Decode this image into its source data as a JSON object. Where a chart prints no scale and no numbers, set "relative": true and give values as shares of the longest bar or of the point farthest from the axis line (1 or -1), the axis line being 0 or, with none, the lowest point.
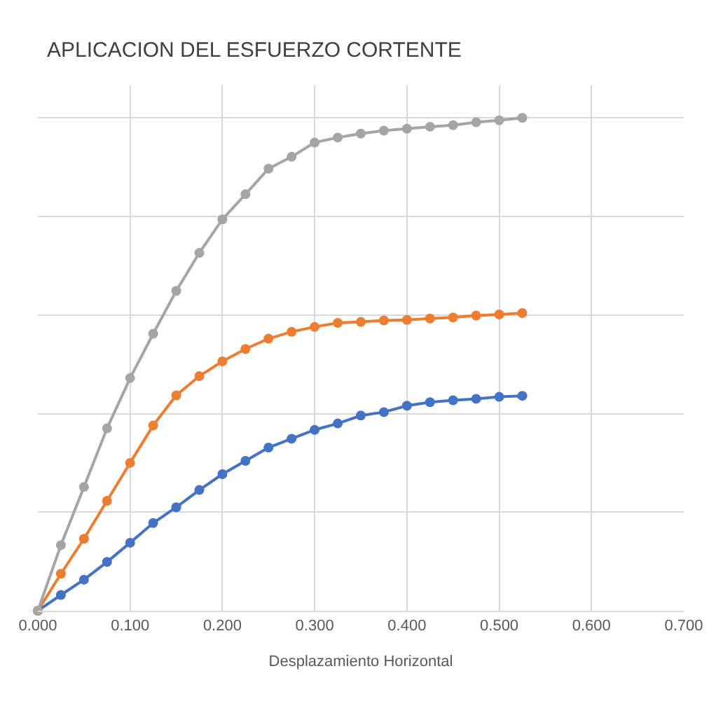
{
  "chart_data": {
    "type": "line",
    "title": "APLICACION DEL ESFUERZO CORTENTE",
    "xlabel": "Desplazamiento Horizontal",
    "relative": true,
    "x": [
      0,
      0.025,
      0.05,
      0.075,
      0.1,
      0.125,
      0.15,
      0.175,
      0.2,
      0.225,
      0.25,
      0.275,
      0.3,
      0.325,
      0.35,
      0.375,
      0.4,
      0.425,
      0.45,
      0.475,
      0.5,
      0.525
    ],
    "series": [
      {
        "color": "#4472c4",
        "values": [
          0,
          0.032,
          0.063,
          0.099,
          0.138,
          0.178,
          0.21,
          0.245,
          0.277,
          0.304,
          0.331,
          0.349,
          0.367,
          0.38,
          0.396,
          0.403,
          0.416,
          0.423,
          0.427,
          0.43,
          0.434,
          0.436
        ]
      },
      {
        "color": "#ed7d31",
        "values": [
          0,
          0.075,
          0.146,
          0.223,
          0.3,
          0.376,
          0.437,
          0.476,
          0.506,
          0.531,
          0.552,
          0.566,
          0.576,
          0.584,
          0.586,
          0.589,
          0.59,
          0.593,
          0.595,
          0.599,
          0.601,
          0.604
        ]
      },
      {
        "color": "#a5a5a5",
        "values": [
          0,
          0.133,
          0.251,
          0.37,
          0.472,
          0.562,
          0.649,
          0.726,
          0.794,
          0.845,
          0.897,
          0.921,
          0.95,
          0.96,
          0.968,
          0.974,
          0.978,
          0.982,
          0.985,
          0.991,
          0.995,
          1
        ]
      }
    ],
    "xlim": [
      0,
      0.7
    ],
    "xticks": [
      {
        "value": 0,
        "label": "0.000"
      },
      {
        "value": 0.1,
        "label": "0.100"
      },
      {
        "value": 0.2,
        "label": "0.200"
      },
      {
        "value": 0.3,
        "label": "0.300"
      },
      {
        "value": 0.4,
        "label": "0.400"
      },
      {
        "value": 0.5,
        "label": "0.500"
      },
      {
        "value": 0.6,
        "label": "0.600"
      },
      {
        "value": 0.7,
        "label": "0.700"
      }
    ],
    "grid": true,
    "marker": "circle",
    "line_style": "solid"
  }
}
